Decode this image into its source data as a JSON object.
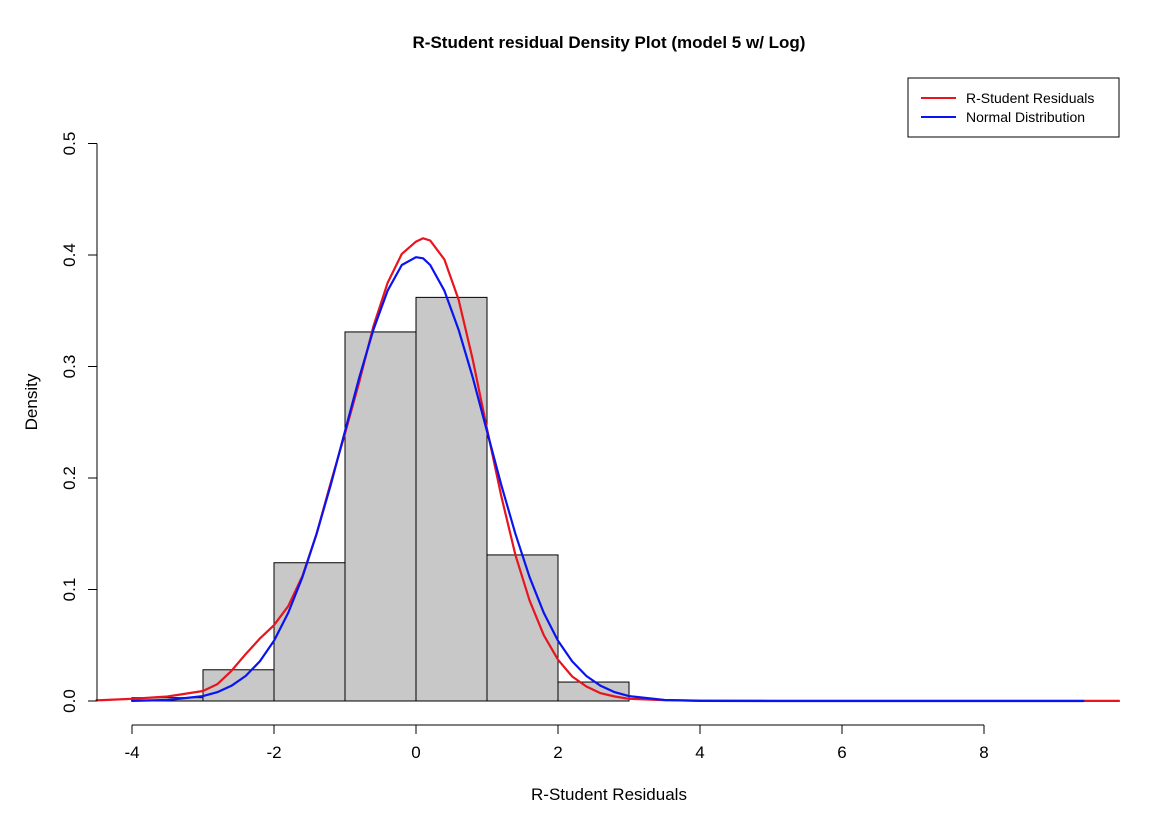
{
  "chart_data": {
    "type": "histogram",
    "title": "R-Student residual Density Plot (model 5 w/ Log)",
    "xlabel": "R-Student Residuals",
    "ylabel": "Density",
    "xlim": [
      -4.5,
      10
    ],
    "ylim": [
      0,
      0.5
    ],
    "x_ticks": [
      -4,
      -2,
      0,
      2,
      4,
      6,
      8
    ],
    "y_ticks": [
      0.0,
      0.1,
      0.2,
      0.3,
      0.4,
      0.5
    ],
    "x_tick_labels": [
      "-4",
      "-2",
      "0",
      "2",
      "4",
      "6",
      "8"
    ],
    "y_tick_labels": [
      "0.0",
      "0.1",
      "0.2",
      "0.3",
      "0.4",
      "0.5"
    ],
    "bins": [
      {
        "start": -4,
        "end": -3,
        "density": 0.003
      },
      {
        "start": -3,
        "end": -2,
        "density": 0.028
      },
      {
        "start": -2,
        "end": -1,
        "density": 0.124
      },
      {
        "start": -1,
        "end": 0,
        "density": 0.331
      },
      {
        "start": 0,
        "end": 1,
        "density": 0.362
      },
      {
        "start": 1,
        "end": 2,
        "density": 0.131
      },
      {
        "start": 2,
        "end": 3,
        "density": 0.017
      }
    ],
    "bar_fill": "#c8c8c8",
    "series": [
      {
        "name": "R-Student Residuals",
        "color": "#e8141e",
        "x": [
          -4.5,
          -4.0,
          -3.5,
          -3.0,
          -2.8,
          -2.6,
          -2.4,
          -2.2,
          -2.0,
          -1.8,
          -1.6,
          -1.4,
          -1.2,
          -1.0,
          -0.8,
          -0.6,
          -0.4,
          -0.2,
          0.0,
          0.1,
          0.2,
          0.4,
          0.6,
          0.8,
          1.0,
          1.2,
          1.4,
          1.6,
          1.8,
          2.0,
          2.2,
          2.4,
          2.6,
          2.8,
          3.0,
          3.5,
          4.0,
          5.0,
          6.0,
          8.0,
          10.0
        ],
        "y": [
          0.0005,
          0.002,
          0.004,
          0.009,
          0.015,
          0.027,
          0.042,
          0.056,
          0.068,
          0.085,
          0.112,
          0.15,
          0.196,
          0.24,
          0.286,
          0.336,
          0.375,
          0.401,
          0.412,
          0.415,
          0.413,
          0.396,
          0.36,
          0.306,
          0.244,
          0.184,
          0.131,
          0.09,
          0.059,
          0.037,
          0.022,
          0.013,
          0.007,
          0.004,
          0.002,
          0.0008,
          0.0004,
          0.0002,
          0.0001,
          0.0001,
          0.0001
        ]
      },
      {
        "name": "Normal Distribution",
        "color": "#0a14f0",
        "x": [
          -4.0,
          -3.5,
          -3.0,
          -2.8,
          -2.6,
          -2.4,
          -2.2,
          -2.0,
          -1.8,
          -1.6,
          -1.4,
          -1.2,
          -1.0,
          -0.8,
          -0.6,
          -0.4,
          -0.2,
          0.0,
          0.1,
          0.2,
          0.4,
          0.6,
          0.8,
          1.0,
          1.2,
          1.4,
          1.6,
          1.8,
          2.0,
          2.2,
          2.4,
          2.6,
          2.8,
          3.0,
          3.5,
          4.0,
          5.0,
          6.0,
          8.0,
          9.4
        ],
        "y": [
          0.0001,
          0.0009,
          0.0044,
          0.0079,
          0.0136,
          0.0224,
          0.0355,
          0.054,
          0.079,
          0.111,
          0.15,
          0.194,
          0.242,
          0.29,
          0.333,
          0.368,
          0.391,
          0.398,
          0.397,
          0.391,
          0.368,
          0.333,
          0.29,
          0.242,
          0.194,
          0.15,
          0.111,
          0.079,
          0.054,
          0.0355,
          0.0224,
          0.0136,
          0.0079,
          0.0044,
          0.0009,
          0.0001,
          0.0,
          0.0,
          0.0,
          0.0
        ]
      }
    ],
    "legend": {
      "placement": "top-right"
    },
    "grid": false
  }
}
